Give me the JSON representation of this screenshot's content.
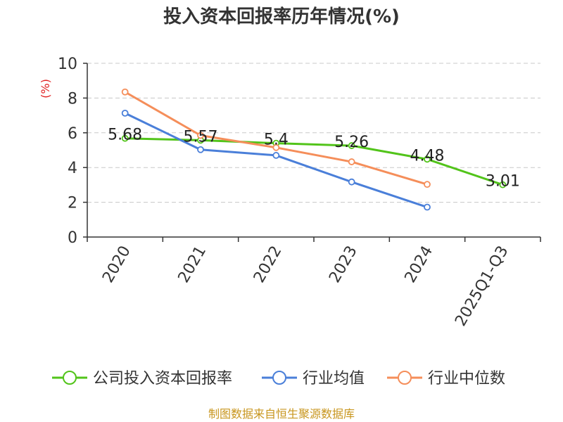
{
  "chart_data": {
    "type": "line",
    "title": "投入资本回报率历年情况(%)",
    "ylabel": "(%)",
    "xlabel": "",
    "categories": [
      "2020",
      "2021",
      "2022",
      "2023",
      "2024",
      "2025Q1-Q3"
    ],
    "ylim": [
      0,
      10
    ],
    "yticks": [
      0,
      2,
      4,
      6,
      8,
      10
    ],
    "grid": true,
    "legend_position": "bottom",
    "series": [
      {
        "name": "公司投入资本回报率",
        "color": "#52c41a",
        "values": [
          5.68,
          5.57,
          5.4,
          5.26,
          4.48,
          3.01
        ],
        "labels": [
          "5.68",
          "5.57",
          "5.4",
          "5.26",
          "4.48",
          "3.01"
        ]
      },
      {
        "name": "行业均值",
        "color": "#4a7fd9",
        "values": [
          7.13,
          5.03,
          4.7,
          3.17,
          1.72,
          null
        ]
      },
      {
        "name": "行业中位数",
        "color": "#f58e5a",
        "values": [
          8.35,
          5.85,
          5.15,
          4.33,
          3.03,
          null
        ]
      }
    ],
    "source": "制图数据来自恒生聚源数据库"
  }
}
